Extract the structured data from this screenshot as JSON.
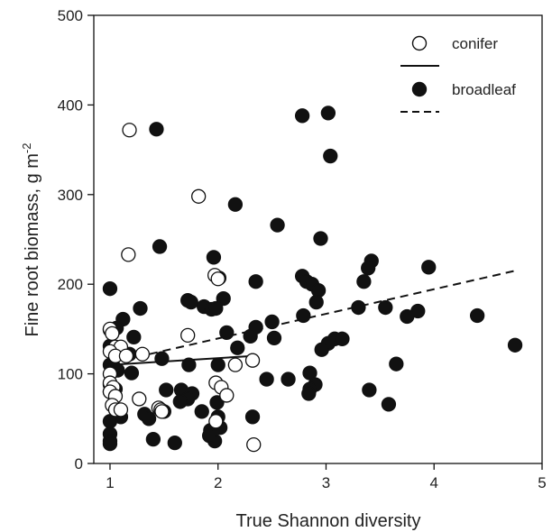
{
  "chart_data": {
    "type": "scatter",
    "xlabel": "True Shannon diversity",
    "ylabel": "Fine root biomass, g m",
    "ylabel_superscript": "-2",
    "xlim": [
      0.85,
      5.0
    ],
    "ylim": [
      0,
      500
    ],
    "x_ticks": [
      "1",
      "2",
      "3",
      "4",
      "5"
    ],
    "y_ticks": [
      "0",
      "100",
      "200",
      "300",
      "400",
      "500"
    ],
    "x_tick_values": [
      1,
      2,
      3,
      4,
      5
    ],
    "y_tick_values": [
      0,
      100,
      200,
      300,
      400,
      500
    ],
    "grid": false,
    "legend_position": "top-right",
    "series": [
      {
        "name": "conifer",
        "marker": "open-circle",
        "line_style": "solid",
        "color": "#111111",
        "points": [
          [
            1.0,
            150
          ],
          [
            1.02,
            145
          ],
          [
            1.05,
            130
          ],
          [
            1.1,
            130
          ],
          [
            1.0,
            125
          ],
          [
            1.05,
            120
          ],
          [
            1.15,
            120
          ],
          [
            1.0,
            100
          ],
          [
            1.0,
            90
          ],
          [
            1.03,
            85
          ],
          [
            1.0,
            80
          ],
          [
            1.05,
            75
          ],
          [
            1.02,
            65
          ],
          [
            1.05,
            60
          ],
          [
            1.1,
            60
          ],
          [
            1.18,
            372
          ],
          [
            1.17,
            233
          ],
          [
            1.3,
            122
          ],
          [
            1.27,
            72
          ],
          [
            1.45,
            62
          ],
          [
            1.47,
            60
          ],
          [
            1.48,
            58
          ],
          [
            1.72,
            143
          ],
          [
            1.82,
            298
          ],
          [
            1.97,
            210
          ],
          [
            2.0,
            206
          ],
          [
            1.98,
            90
          ],
          [
            2.03,
            85
          ],
          [
            2.08,
            76
          ],
          [
            1.98,
            47
          ],
          [
            2.16,
            110
          ],
          [
            2.32,
            115
          ],
          [
            2.33,
            21
          ]
        ],
        "fit_line": [
          [
            1.0,
            110
          ],
          [
            2.33,
            120
          ]
        ]
      },
      {
        "name": "broadleaf",
        "marker": "filled-circle",
        "line_style": "dashed",
        "color": "#111111",
        "points": [
          [
            1.43,
            373
          ],
          [
            2.78,
            388
          ],
          [
            3.02,
            391
          ],
          [
            3.04,
            343
          ],
          [
            2.16,
            289
          ],
          [
            2.55,
            266
          ],
          [
            2.95,
            251
          ],
          [
            1.46,
            242
          ],
          [
            1.96,
            230
          ],
          [
            3.42,
            226
          ],
          [
            3.39,
            218
          ],
          [
            3.95,
            219
          ],
          [
            2.01,
            207
          ],
          [
            2.78,
            209
          ],
          [
            2.82,
            203
          ],
          [
            2.87,
            200
          ],
          [
            2.93,
            193
          ],
          [
            3.35,
            203
          ],
          [
            2.35,
            203
          ],
          [
            1.0,
            195
          ],
          [
            2.05,
            184
          ],
          [
            1.72,
            182
          ],
          [
            1.75,
            180
          ],
          [
            1.87,
            175
          ],
          [
            1.94,
            172
          ],
          [
            1.98,
            173
          ],
          [
            2.91,
            180
          ],
          [
            1.28,
            173
          ],
          [
            3.3,
            174
          ],
          [
            3.55,
            174
          ],
          [
            3.85,
            170
          ],
          [
            3.75,
            164
          ],
          [
            4.4,
            165
          ],
          [
            2.79,
            165
          ],
          [
            2.5,
            158
          ],
          [
            2.35,
            152
          ],
          [
            1.12,
            161
          ],
          [
            1.06,
            151
          ],
          [
            1.0,
            149
          ],
          [
            1.22,
            141
          ],
          [
            2.08,
            146
          ],
          [
            2.3,
            142
          ],
          [
            2.52,
            140
          ],
          [
            3.08,
            139
          ],
          [
            3.15,
            139
          ],
          [
            3.02,
            134
          ],
          [
            2.18,
            129
          ],
          [
            2.96,
            127
          ],
          [
            1.0,
            131
          ],
          [
            1.05,
            126
          ],
          [
            1.18,
            122
          ],
          [
            4.75,
            132
          ],
          [
            1.0,
            110
          ],
          [
            1.04,
            107
          ],
          [
            1.07,
            104
          ],
          [
            1.2,
            101
          ],
          [
            1.48,
            117
          ],
          [
            1.73,
            110
          ],
          [
            2.0,
            110
          ],
          [
            3.65,
            111
          ],
          [
            2.85,
            101
          ],
          [
            2.45,
            94
          ],
          [
            2.65,
            94
          ],
          [
            2.9,
            88
          ],
          [
            2.85,
            83
          ],
          [
            2.84,
            78
          ],
          [
            3.4,
            82
          ],
          [
            3.58,
            66
          ],
          [
            1.0,
            88
          ],
          [
            1.0,
            80
          ],
          [
            1.05,
            83
          ],
          [
            1.52,
            82
          ],
          [
            1.66,
            82
          ],
          [
            1.76,
            78
          ],
          [
            1.72,
            72
          ],
          [
            1.65,
            69
          ],
          [
            1.99,
            68
          ],
          [
            1.32,
            55
          ],
          [
            1.36,
            50
          ],
          [
            1.1,
            52
          ],
          [
            1.0,
            47
          ],
          [
            1.5,
            58
          ],
          [
            1.85,
            58
          ],
          [
            2.0,
            52
          ],
          [
            2.32,
            52
          ],
          [
            1.0,
            33
          ],
          [
            1.0,
            25
          ],
          [
            1.0,
            22
          ],
          [
            1.4,
            27
          ],
          [
            1.6,
            23
          ],
          [
            1.93,
            37
          ],
          [
            1.97,
            25
          ],
          [
            2.02,
            40
          ],
          [
            1.92,
            31
          ]
        ],
        "fit_line": [
          [
            1.0,
            112
          ],
          [
            4.75,
            215
          ]
        ]
      }
    ]
  }
}
